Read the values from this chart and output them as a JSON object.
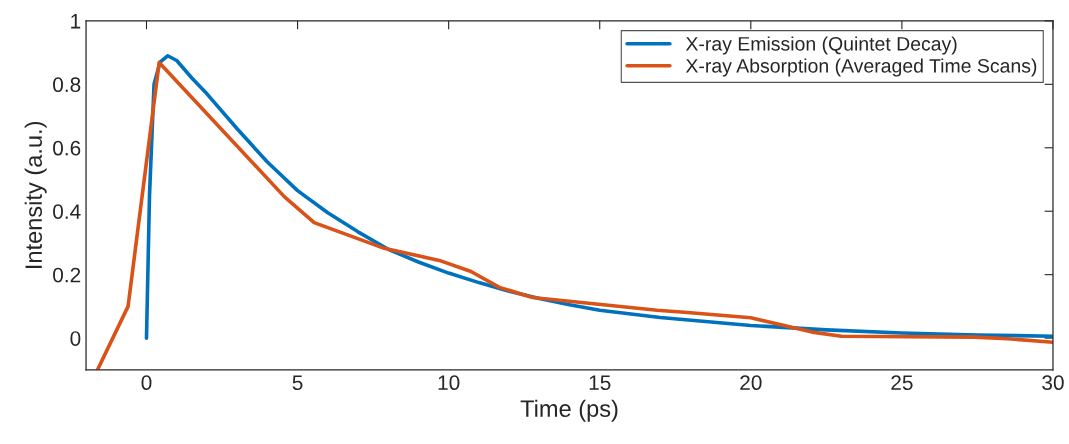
{
  "chart_data": {
    "type": "line",
    "xlabel": "Time (ps)",
    "ylabel": "Intensity (a.u.)",
    "xlim": [
      -2,
      30
    ],
    "xticks": [
      0,
      5,
      10,
      15,
      20,
      25,
      30
    ],
    "ylim": [
      -0.1,
      1
    ],
    "yticks": [
      0,
      0.2,
      0.4,
      0.6,
      0.8,
      1
    ],
    "grid": false,
    "legend": "top right",
    "line_style": "solid",
    "marker": "none",
    "series": [
      {
        "name": "X-ray Emission (Quintet Decay)",
        "color": "#0072bd",
        "x": [
          0,
          0.1,
          0.25,
          0.45,
          0.7,
          1,
          1.5,
          2,
          3,
          4,
          5,
          6,
          7,
          8,
          9,
          10,
          11,
          12,
          13,
          14,
          15,
          17,
          20,
          22.5,
          25,
          27.5,
          30
        ],
        "values": [
          0,
          0.45,
          0.8,
          0.87,
          0.89,
          0.875,
          0.82,
          0.77,
          0.66,
          0.555,
          0.465,
          0.395,
          0.335,
          0.28,
          0.24,
          0.205,
          0.175,
          0.148,
          0.125,
          0.105,
          0.088,
          0.065,
          0.04,
          0.026,
          0.016,
          0.01,
          0.006
        ]
      },
      {
        "name": "X-ray Absorption (Averaged Time Scans)",
        "color": "#d95319",
        "x": [
          -1.62,
          -0.61,
          0.42,
          4.56,
          5.55,
          7.87,
          9.69,
          10.74,
          11.68,
          12.78,
          16.9,
          17.9,
          20,
          22.03,
          23,
          27.4,
          28.5,
          30
        ],
        "values": [
          -0.1,
          0.1,
          0.869,
          0.446,
          0.364,
          0.283,
          0.245,
          0.21,
          0.16,
          0.128,
          0.088,
          0.081,
          0.064,
          0.019,
          0.006,
          0.003,
          -0.002,
          -0.013
        ]
      }
    ]
  }
}
